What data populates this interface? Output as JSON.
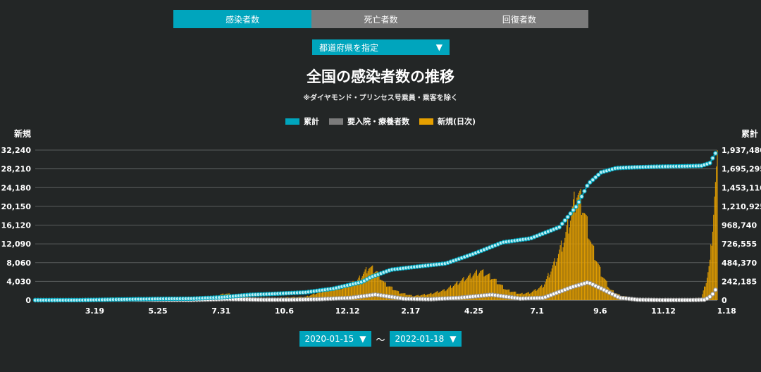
{
  "tabs": [
    {
      "label": "感染者数",
      "active": true
    },
    {
      "label": "死亡者数",
      "active": false
    },
    {
      "label": "回復者数",
      "active": false
    }
  ],
  "prefecture_select": {
    "label": "都道府県を指定"
  },
  "colors": {
    "accent": "#00a5bd",
    "cumulative": "#00a5bd",
    "inpatient": "#7b7b7b",
    "daily": "#e6a000"
  },
  "chart_data": {
    "type": "bar+line",
    "title": "全国の感染者数の推移",
    "subtitle": "※ダイヤモンド・プリンセス号乗員・乗客を除く",
    "left_axis_title": "新規",
    "right_axis_title": "累計",
    "legend": [
      "累計",
      "要入院・療養者数",
      "新規(日次)"
    ],
    "legend_position": "top-center",
    "x_ticks": [
      "3.19",
      "5.25",
      "7.31",
      "10.6",
      "12.12",
      "2.17",
      "4.25",
      "7.1",
      "9.6",
      "11.12",
      "1.18"
    ],
    "y_left_ticks": [
      "0",
      "4,030",
      "8,060",
      "12,090",
      "16,120",
      "20,150",
      "24,180",
      "28,210",
      "32,240"
    ],
    "y_right_ticks": [
      "0",
      "242,185",
      "484,370",
      "726,555",
      "968,740",
      "1,210,925",
      "1,453,110",
      "1,695,295",
      "1,937,480"
    ],
    "y_left_range": [
      0,
      32240
    ],
    "y_right_range": [
      0,
      1937480
    ],
    "x_range": [
      "2020-01-15",
      "2022-01-18"
    ],
    "grid": true,
    "series": [
      {
        "name": "新規(日次)",
        "type": "bar",
        "axis": "left",
        "points": [
          [
            "2020-01-15",
            0
          ],
          [
            "2020-03-01",
            15
          ],
          [
            "2020-04-11",
            650
          ],
          [
            "2020-05-15",
            50
          ],
          [
            "2020-06-20",
            60
          ],
          [
            "2020-07-15",
            400
          ],
          [
            "2020-08-07",
            1600
          ],
          [
            "2020-09-01",
            600
          ],
          [
            "2020-10-01",
            550
          ],
          [
            "2020-11-01",
            800
          ],
          [
            "2020-11-20",
            2200
          ],
          [
            "2020-12-10",
            3000
          ],
          [
            "2020-12-26",
            4500
          ],
          [
            "2021-01-08",
            7900
          ],
          [
            "2021-01-16",
            7000
          ],
          [
            "2021-01-25",
            4000
          ],
          [
            "2021-02-10",
            1800
          ],
          [
            "2021-02-25",
            1000
          ],
          [
            "2021-03-15",
            1500
          ],
          [
            "2021-04-01",
            2500
          ],
          [
            "2021-04-20",
            5000
          ],
          [
            "2021-05-08",
            7000
          ],
          [
            "2021-05-20",
            5500
          ],
          [
            "2021-06-05",
            2500
          ],
          [
            "2021-06-20",
            1500
          ],
          [
            "2021-07-01",
            1800
          ],
          [
            "2021-07-15",
            3500
          ],
          [
            "2021-07-28",
            9500
          ],
          [
            "2021-08-07",
            15000
          ],
          [
            "2021-08-13",
            20000
          ],
          [
            "2021-08-20",
            25800
          ],
          [
            "2021-08-26",
            23000
          ],
          [
            "2021-09-05",
            13000
          ],
          [
            "2021-09-15",
            6500
          ],
          [
            "2021-09-25",
            2500
          ],
          [
            "2021-10-05",
            1200
          ],
          [
            "2021-10-20",
            400
          ],
          [
            "2021-11-10",
            180
          ],
          [
            "2021-12-01",
            120
          ],
          [
            "2021-12-20",
            250
          ],
          [
            "2022-01-01",
            600
          ],
          [
            "2022-01-06",
            4500
          ],
          [
            "2022-01-10",
            9000
          ],
          [
            "2022-01-13",
            18000
          ],
          [
            "2022-01-15",
            25000
          ],
          [
            "2022-01-18",
            32200
          ]
        ]
      },
      {
        "name": "累計",
        "type": "line",
        "axis": "right",
        "points": [
          [
            "2020-01-15",
            0
          ],
          [
            "2020-03-01",
            240
          ],
          [
            "2020-04-15",
            9000
          ],
          [
            "2020-05-31",
            17000
          ],
          [
            "2020-07-01",
            19000
          ],
          [
            "2020-08-01",
            36000
          ],
          [
            "2020-09-01",
            68000
          ],
          [
            "2020-10-01",
            83000
          ],
          [
            "2020-11-01",
            101000
          ],
          [
            "2020-12-01",
            149000
          ],
          [
            "2021-01-01",
            236000
          ],
          [
            "2021-01-10",
            296000
          ],
          [
            "2021-02-01",
            393000
          ],
          [
            "2021-03-01",
            433000
          ],
          [
            "2021-04-01",
            474000
          ],
          [
            "2021-05-01",
            599000
          ],
          [
            "2021-06-01",
            746000
          ],
          [
            "2021-07-01",
            797000
          ],
          [
            "2021-08-01",
            942000
          ],
          [
            "2021-08-20",
            1220000
          ],
          [
            "2021-09-01",
            1500000
          ],
          [
            "2021-09-15",
            1650000
          ],
          [
            "2021-10-01",
            1705000
          ],
          [
            "2021-10-20",
            1715000
          ],
          [
            "2021-11-15",
            1724000
          ],
          [
            "2021-12-15",
            1730000
          ],
          [
            "2022-01-01",
            1735000
          ],
          [
            "2022-01-10",
            1770000
          ],
          [
            "2022-01-18",
            1937480
          ]
        ]
      },
      {
        "name": "要入院・療養者数",
        "type": "line",
        "axis": "right",
        "points": [
          [
            "2020-01-15",
            0
          ],
          [
            "2020-03-01",
            200
          ],
          [
            "2020-04-25",
            7000
          ],
          [
            "2020-06-01",
            1500
          ],
          [
            "2020-07-01",
            1200
          ],
          [
            "2020-08-07",
            13700
          ],
          [
            "2020-09-15",
            5000
          ],
          [
            "2020-10-15",
            5000
          ],
          [
            "2020-11-15",
            12000
          ],
          [
            "2020-12-20",
            30000
          ],
          [
            "2021-01-15",
            72000
          ],
          [
            "2021-02-15",
            18000
          ],
          [
            "2021-03-15",
            12000
          ],
          [
            "2021-04-15",
            30000
          ],
          [
            "2021-05-20",
            70000
          ],
          [
            "2021-06-20",
            20000
          ],
          [
            "2021-07-15",
            30000
          ],
          [
            "2021-08-15",
            170000
          ],
          [
            "2021-09-01",
            230000
          ],
          [
            "2021-09-15",
            150000
          ],
          [
            "2021-10-05",
            30000
          ],
          [
            "2021-10-25",
            5000
          ],
          [
            "2021-11-20",
            1000
          ],
          [
            "2021-12-20",
            1500
          ],
          [
            "2022-01-05",
            5000
          ],
          [
            "2022-01-12",
            60000
          ],
          [
            "2022-01-18",
            170000
          ]
        ]
      }
    ]
  },
  "date_range": {
    "start": "2020-01-15",
    "end": "2022-01-18",
    "separator": "～"
  }
}
